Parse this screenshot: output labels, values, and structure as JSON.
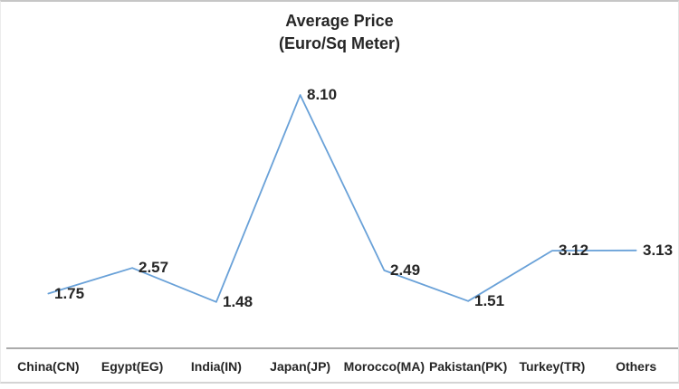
{
  "chart_data": {
    "type": "line",
    "title": "Average Price",
    "subtitle": "(Euro/Sq Meter)",
    "categories": [
      "China(CN)",
      "Egypt(EG)",
      "India(IN)",
      "Japan(JP)",
      "Morocco(MA)",
      "Pakistan(PK)",
      "Turkey(TR)",
      "Others"
    ],
    "series": [
      {
        "name": "Average Price (Euro/Sq Meter)",
        "values": [
          1.75,
          2.57,
          1.48,
          8.1,
          2.49,
          1.51,
          3.12,
          3.13
        ]
      }
    ],
    "data_labels": [
      "1.75",
      "2.57",
      "1.48",
      "8.10",
      "2.49",
      "1.51",
      "3.12",
      "3.13"
    ],
    "xlabel": "",
    "ylabel": "",
    "ylim": [
      0,
      9
    ],
    "grid": false,
    "legend": "none",
    "markers": false,
    "data_label_position": "right",
    "colors": {
      "line": "#69a1d8",
      "text": "#262626",
      "axis": "#ababab",
      "frame_border": "#c6c6c6",
      "background": "#ffffff"
    }
  }
}
